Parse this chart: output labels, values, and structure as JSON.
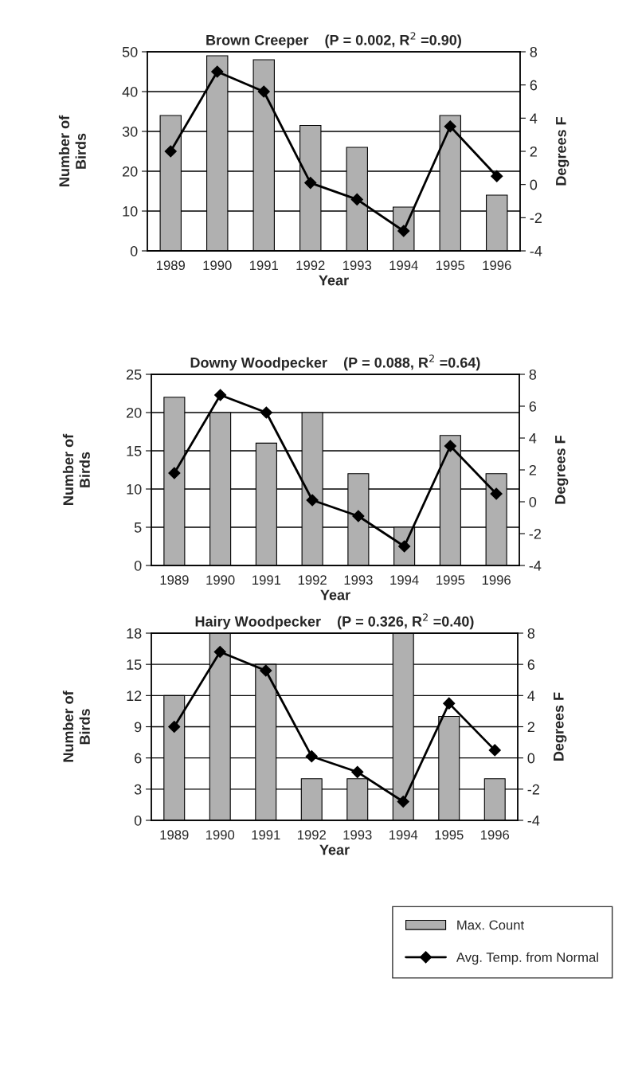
{
  "chart_data": [
    {
      "type": "bar",
      "title": "Brown Creeper    (P = 0.002, R$^{2}$ =0.90)",
      "xlabel": "Year",
      "ylabel": "Number of\nBirds",
      "y2label": "Degrees F",
      "categories": [
        "1989",
        "1990",
        "1991",
        "1992",
        "1993",
        "1994",
        "1995",
        "1996"
      ],
      "series": [
        {
          "name": "Max. Count",
          "color": "#b0b0b0",
          "values": [
            34,
            49,
            48,
            31.5,
            26,
            11,
            34,
            14
          ]
        },
        {
          "name": "Avg. Temp. from Normal",
          "type": "line",
          "axis": "y2",
          "color": "#000000",
          "marker": "diamond",
          "values": [
            2,
            6.8,
            5.6,
            0.1,
            -0.9,
            -2.8,
            3.5,
            0.5
          ]
        }
      ],
      "ylim": [
        0,
        50
      ],
      "yticks": [
        0,
        10,
        20,
        30,
        40,
        50
      ],
      "y2lim": [
        -4,
        8
      ],
      "y2ticks": [
        -4,
        -2,
        0,
        2,
        4,
        6,
        8
      ],
      "grid": "y",
      "legend": "bottom right"
    },
    {
      "type": "bar",
      "title": "Downy Woodpecker    (P = 0.088, R$^{2}$ =0.64)",
      "xlabel": "Year",
      "ylabel": "Number of\nBirds",
      "y2label": "Degrees F",
      "categories": [
        "1989",
        "1990",
        "1991",
        "1992",
        "1993",
        "1994",
        "1995",
        "1996"
      ],
      "series": [
        {
          "color": "#b0b0b0",
          "values": [
            22,
            20,
            16,
            20,
            12,
            5,
            17,
            12
          ]
        },
        {
          "type": "line",
          "axis": "y2",
          "color": "#000000",
          "marker": "diamond",
          "values": [
            1.8,
            6.7,
            5.6,
            0.1,
            -0.9,
            -2.8,
            3.5,
            0.5
          ]
        }
      ],
      "ylim": [
        0,
        25
      ],
      "yticks": [
        0,
        5,
        10,
        15,
        20,
        25
      ],
      "y2lim": [
        -4,
        8
      ],
      "y2ticks": [
        -4,
        -2,
        0,
        2,
        4,
        6,
        8
      ],
      "grid": "y"
    },
    {
      "type": "bar",
      "title": "Hairy Woodpecker    (P = 0.326, R$^{2}$ =0.40)",
      "xlabel": "Year",
      "ylabel": "Number of\nBirds",
      "y2label": "Degrees F",
      "categories": [
        "1989",
        "1990",
        "1991",
        "1992",
        "1993",
        "1994",
        "1995",
        "1996"
      ],
      "series": [
        {
          "color": "#b0b0b0",
          "values": [
            12,
            18,
            15,
            4,
            4,
            18,
            10,
            4
          ]
        },
        {
          "type": "line",
          "axis": "y2",
          "color": "#000000",
          "marker": "diamond",
          "values": [
            2,
            6.8,
            5.6,
            0.1,
            -0.9,
            -2.8,
            3.5,
            0.5
          ]
        }
      ],
      "ylim": [
        0,
        18
      ],
      "yticks": [
        0,
        3,
        6,
        9,
        12,
        15,
        18
      ],
      "y2lim": [
        -4,
        8
      ],
      "y2ticks": [
        -4,
        -2,
        0,
        2,
        4,
        6,
        8
      ],
      "grid": "y"
    }
  ]
}
